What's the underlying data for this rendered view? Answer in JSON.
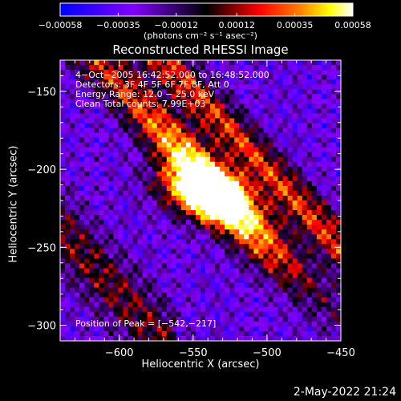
{
  "timestamp": "2-May-2022 21:24",
  "colorbar": {
    "tick_labels": [
      "−0.00058",
      "−0.00035",
      "−0.00012",
      "0.00012",
      "0.00035",
      "0.00058"
    ],
    "ticks": [
      -0.00058,
      -0.00035,
      -0.00012,
      0.00012,
      0.00035,
      0.00058
    ],
    "range": [
      -0.00058,
      0.00058
    ],
    "units_label": "(photons cm⁻² s⁻¹ asec⁻²)"
  },
  "chart_data": {
    "type": "heatmap",
    "title": "Reconstructed RHESSI Image",
    "xlabel": "Heliocentric X (arcsec)",
    "ylabel": "Heliocentric Y (arcsec)",
    "xlim": [
      -640,
      -450
    ],
    "ylim": [
      -310,
      -130
    ],
    "x_ticks": [
      -600,
      -550,
      -500,
      -450
    ],
    "x_tick_labels": [
      "−600",
      "−550",
      "−500",
      "−450"
    ],
    "y_ticks": [
      -300,
      -250,
      -200,
      -150
    ],
    "y_tick_labels": [
      "−300",
      "−250",
      "−200",
      "−150"
    ],
    "info_lines": [
      " 4−Oct−2005 16:42:52.000 to 16:48:52.000",
      "Detectors: 3F 4F 5F 6F 7F 8F, Att 0",
      "Energy Range: 12.0 − 25.0 keV",
      "Clean     Total counts: 7.99E+03"
    ],
    "peak_label": "Position of Peak = [−542,−217]",
    "peak_position": [
      -542,
      -217
    ],
    "colormap": [
      "#0000ff",
      "#8800ff",
      "#000000",
      "#ff0000",
      "#ff8800",
      "#ffff00",
      "#ffffff"
    ]
  }
}
